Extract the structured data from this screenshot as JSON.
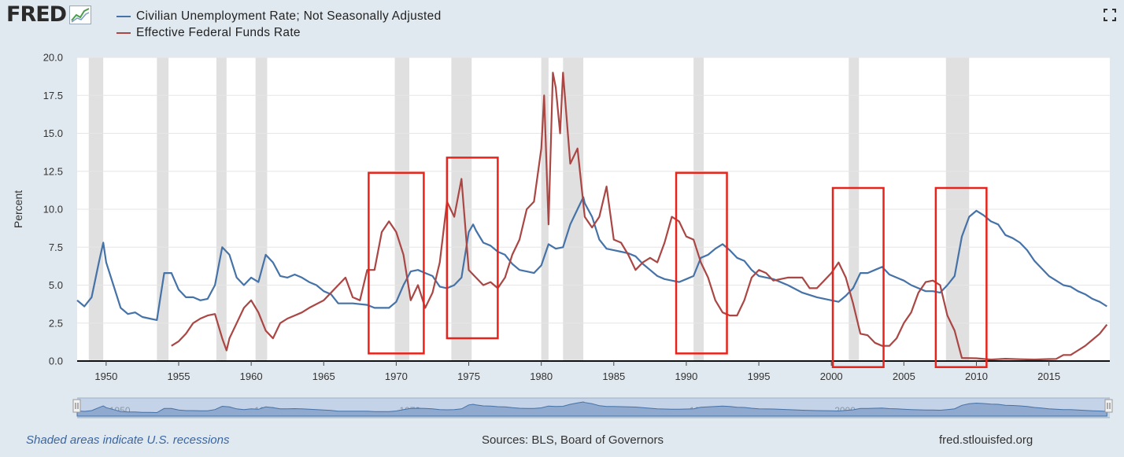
{
  "header": {
    "logo_text": "FRED",
    "logo_icon": "line-graph-icon",
    "fullscreen_icon": "fullscreen-icon"
  },
  "legend": {
    "items": [
      {
        "label": "Civilian Unemployment Rate; Not Seasonally Adjusted",
        "color": "#4572a7"
      },
      {
        "label": "Effective Federal Funds Rate",
        "color": "#aa4643"
      }
    ]
  },
  "footer": {
    "note": "Shaded areas indicate U.S. recessions",
    "sources": "Sources: BLS, Board of Governors",
    "site": "fred.stlouisfed.org"
  },
  "colors": {
    "background": "#e1e9f0",
    "plot_background": "#ffffff",
    "recession_shade": "#e0e0e0",
    "unemployment": "#4572a7",
    "fed_funds": "#aa4643",
    "highlight_box": "#e8231b",
    "navigator_fill": "#8fa9cf",
    "navigator_mask": "#c5d3e8"
  },
  "chart_data": {
    "type": "line",
    "title": "",
    "xlabel": "",
    "ylabel": "Percent",
    "xlim": [
      1948.0,
      2019.2
    ],
    "ylim": [
      0,
      20
    ],
    "grid": true,
    "y_ticks": [
      {
        "value": 0,
        "label": "0.0"
      },
      {
        "value": 2.5,
        "label": "2.5"
      },
      {
        "value": 5,
        "label": "5.0"
      },
      {
        "value": 7.5,
        "label": "7.5"
      },
      {
        "value": 10,
        "label": "10.0"
      },
      {
        "value": 12.5,
        "label": "12.5"
      },
      {
        "value": 15,
        "label": "15.0"
      },
      {
        "value": 17.5,
        "label": "17.5"
      },
      {
        "value": 20,
        "label": "20.0"
      }
    ],
    "x_ticks": [
      {
        "value": 1950,
        "label": "1950"
      },
      {
        "value": 1955,
        "label": "1955"
      },
      {
        "value": 1960,
        "label": "1960"
      },
      {
        "value": 1965,
        "label": "1965"
      },
      {
        "value": 1970,
        "label": "1970"
      },
      {
        "value": 1975,
        "label": "1975"
      },
      {
        "value": 1980,
        "label": "1980"
      },
      {
        "value": 1985,
        "label": "1985"
      },
      {
        "value": 1990,
        "label": "1990"
      },
      {
        "value": 1995,
        "label": "1995"
      },
      {
        "value": 2000,
        "label": "2000"
      },
      {
        "value": 2005,
        "label": "2005"
      },
      {
        "value": 2010,
        "label": "2010"
      },
      {
        "value": 2015,
        "label": "2015"
      }
    ],
    "navigator_labels": [
      "1950",
      "1960",
      "1970",
      "1980",
      "1990",
      "2000",
      "2010"
    ],
    "recessions": [
      [
        1948.8,
        1949.8
      ],
      [
        1953.5,
        1954.3
      ],
      [
        1957.6,
        1958.3
      ],
      [
        1960.3,
        1961.1
      ],
      [
        1969.9,
        1970.9
      ],
      [
        1973.8,
        1975.2
      ],
      [
        1980.0,
        1980.5
      ],
      [
        1981.5,
        1982.9
      ],
      [
        1990.5,
        1991.2
      ],
      [
        2001.2,
        2001.9
      ],
      [
        2007.9,
        2009.5
      ]
    ],
    "highlight_boxes": [
      {
        "x": [
          1968.1,
          1971.9
        ],
        "y": [
          0.5,
          12.4
        ]
      },
      {
        "x": [
          1973.5,
          1977.0
        ],
        "y": [
          1.5,
          13.4
        ]
      },
      {
        "x": [
          1989.3,
          1992.8
        ],
        "y": [
          0.5,
          12.4
        ]
      },
      {
        "x": [
          2000.1,
          2003.6
        ],
        "y": [
          -0.4,
          11.4
        ]
      },
      {
        "x": [
          2007.2,
          2010.7
        ],
        "y": [
          -0.4,
          11.4
        ]
      }
    ],
    "series": [
      {
        "name": "Civilian Unemployment Rate; Not Seasonally Adjusted",
        "color": "#4572a7",
        "x": [
          1948.0,
          1948.5,
          1949.0,
          1949.5,
          1949.8,
          1950.0,
          1950.5,
          1951.0,
          1951.5,
          1952.0,
          1952.5,
          1953.0,
          1953.5,
          1954.0,
          1954.5,
          1955.0,
          1955.5,
          1956.0,
          1956.5,
          1957.0,
          1957.5,
          1958.0,
          1958.5,
          1959.0,
          1959.5,
          1960.0,
          1960.5,
          1961.0,
          1961.5,
          1962.0,
          1962.5,
          1963.0,
          1963.5,
          1964.0,
          1964.5,
          1965.0,
          1965.5,
          1966.0,
          1967.0,
          1968.0,
          1968.5,
          1969.0,
          1969.5,
          1970.0,
          1970.5,
          1971.0,
          1971.5,
          1972.0,
          1972.5,
          1973.0,
          1973.5,
          1974.0,
          1974.5,
          1975.0,
          1975.3,
          1975.5,
          1976.0,
          1976.5,
          1977.0,
          1977.5,
          1978.0,
          1978.5,
          1979.0,
          1979.5,
          1980.0,
          1980.5,
          1981.0,
          1981.5,
          1982.0,
          1982.5,
          1982.9,
          1983.0,
          1983.5,
          1984.0,
          1984.5,
          1985.0,
          1985.5,
          1986.0,
          1986.5,
          1987.0,
          1987.5,
          1988.0,
          1988.5,
          1989.0,
          1989.5,
          1990.0,
          1990.5,
          1991.0,
          1991.5,
          1992.0,
          1992.5,
          1993.0,
          1993.5,
          1994.0,
          1994.5,
          1995.0,
          1996.0,
          1997.0,
          1998.0,
          1999.0,
          2000.0,
          2000.5,
          2001.0,
          2001.5,
          2002.0,
          2002.5,
          2003.0,
          2003.5,
          2004.0,
          2004.5,
          2005.0,
          2005.5,
          2006.0,
          2006.5,
          2007.0,
          2007.5,
          2008.0,
          2008.5,
          2009.0,
          2009.5,
          2010.0,
          2010.5,
          2011.0,
          2011.5,
          2012.0,
          2012.5,
          2013.0,
          2013.5,
          2014.0,
          2014.5,
          2015.0,
          2015.5,
          2016.0,
          2016.5,
          2017.0,
          2017.5,
          2018.0,
          2018.5,
          2019.0
        ],
        "values": [
          4.0,
          3.6,
          4.2,
          6.5,
          7.8,
          6.5,
          5.0,
          3.5,
          3.1,
          3.2,
          2.9,
          2.8,
          2.7,
          5.8,
          5.8,
          4.7,
          4.2,
          4.2,
          4.0,
          4.1,
          5.0,
          7.5,
          7.0,
          5.5,
          5.0,
          5.5,
          5.2,
          7.0,
          6.5,
          5.6,
          5.5,
          5.7,
          5.5,
          5.2,
          5.0,
          4.6,
          4.4,
          3.8,
          3.8,
          3.7,
          3.5,
          3.5,
          3.5,
          3.9,
          5.0,
          5.9,
          6.0,
          5.8,
          5.6,
          4.9,
          4.8,
          5.0,
          5.5,
          8.5,
          9.0,
          8.6,
          7.8,
          7.6,
          7.2,
          7.0,
          6.4,
          6.0,
          5.9,
          5.8,
          6.3,
          7.7,
          7.4,
          7.5,
          9.0,
          10.0,
          10.8,
          10.4,
          9.5,
          8.0,
          7.4,
          7.3,
          7.2,
          7.1,
          6.9,
          6.4,
          6.0,
          5.6,
          5.4,
          5.3,
          5.2,
          5.4,
          5.6,
          6.8,
          7.0,
          7.4,
          7.7,
          7.3,
          6.8,
          6.6,
          6.0,
          5.6,
          5.4,
          5.0,
          4.5,
          4.2,
          4.0,
          3.9,
          4.3,
          4.8,
          5.8,
          5.8,
          6.0,
          6.2,
          5.7,
          5.5,
          5.3,
          5.0,
          4.8,
          4.6,
          4.6,
          4.5,
          5.0,
          5.6,
          8.2,
          9.5,
          9.9,
          9.6,
          9.2,
          9.0,
          8.3,
          8.1,
          7.8,
          7.3,
          6.6,
          6.1,
          5.6,
          5.3,
          5.0,
          4.9,
          4.6,
          4.4,
          4.1,
          3.9,
          3.6
        ]
      },
      {
        "name": "Effective Federal Funds Rate",
        "color": "#aa4643",
        "x": [
          1954.5,
          1955.0,
          1955.5,
          1956.0,
          1956.5,
          1957.0,
          1957.5,
          1958.0,
          1958.3,
          1958.5,
          1959.0,
          1959.5,
          1960.0,
          1960.5,
          1961.0,
          1961.5,
          1962.0,
          1962.5,
          1963.0,
          1963.5,
          1964.0,
          1965.0,
          1966.0,
          1966.5,
          1967.0,
          1967.5,
          1968.0,
          1968.5,
          1969.0,
          1969.5,
          1970.0,
          1970.5,
          1971.0,
          1971.5,
          1972.0,
          1972.5,
          1973.0,
          1973.5,
          1974.0,
          1974.5,
          1975.0,
          1975.5,
          1976.0,
          1976.5,
          1977.0,
          1977.5,
          1978.0,
          1978.5,
          1979.0,
          1979.5,
          1980.0,
          1980.2,
          1980.5,
          1980.8,
          1981.0,
          1981.3,
          1981.5,
          1982.0,
          1982.5,
          1983.0,
          1983.5,
          1984.0,
          1984.5,
          1985.0,
          1985.5,
          1986.0,
          1986.5,
          1987.0,
          1987.5,
          1988.0,
          1988.5,
          1989.0,
          1989.5,
          1990.0,
          1990.5,
          1991.0,
          1991.5,
          1992.0,
          1992.5,
          1993.0,
          1993.5,
          1994.0,
          1994.5,
          1995.0,
          1995.5,
          1996.0,
          1997.0,
          1998.0,
          1998.5,
          1999.0,
          1999.5,
          2000.0,
          2000.5,
          2001.0,
          2001.5,
          2002.0,
          2002.5,
          2003.0,
          2003.5,
          2004.0,
          2004.5,
          2005.0,
          2005.5,
          2006.0,
          2006.5,
          2007.0,
          2007.5,
          2008.0,
          2008.5,
          2009.0,
          2010.0,
          2011.0,
          2012.0,
          2013.0,
          2014.0,
          2015.0,
          2015.5,
          2016.0,
          2016.5,
          2017.0,
          2017.5,
          2018.0,
          2018.5,
          2019.0
        ],
        "values": [
          1.0,
          1.3,
          1.8,
          2.5,
          2.8,
          3.0,
          3.1,
          1.5,
          0.7,
          1.5,
          2.5,
          3.5,
          4.0,
          3.2,
          2.0,
          1.5,
          2.5,
          2.8,
          3.0,
          3.2,
          3.5,
          4.0,
          5.0,
          5.5,
          4.2,
          4.0,
          6.0,
          6.0,
          8.5,
          9.2,
          8.5,
          7.0,
          4.0,
          5.0,
          3.5,
          4.5,
          6.5,
          10.5,
          9.5,
          12.0,
          6.0,
          5.5,
          5.0,
          5.2,
          4.8,
          5.5,
          7.0,
          8.0,
          10.0,
          10.5,
          14.0,
          17.5,
          9.0,
          19.0,
          18.0,
          15.0,
          19.0,
          13.0,
          14.0,
          9.5,
          8.8,
          9.5,
          11.5,
          8.0,
          7.8,
          7.0,
          6.0,
          6.5,
          6.8,
          6.5,
          7.8,
          9.5,
          9.2,
          8.2,
          8.0,
          6.5,
          5.5,
          4.0,
          3.2,
          3.0,
          3.0,
          4.0,
          5.5,
          6.0,
          5.8,
          5.3,
          5.5,
          5.5,
          4.8,
          4.8,
          5.3,
          5.8,
          6.5,
          5.5,
          3.8,
          1.8,
          1.7,
          1.2,
          1.0,
          1.0,
          1.5,
          2.5,
          3.2,
          4.5,
          5.2,
          5.3,
          5.0,
          3.0,
          2.0,
          0.2,
          0.18,
          0.1,
          0.15,
          0.12,
          0.1,
          0.13,
          0.14,
          0.4,
          0.4,
          0.7,
          1.0,
          1.4,
          1.8,
          2.4
        ]
      }
    ]
  }
}
